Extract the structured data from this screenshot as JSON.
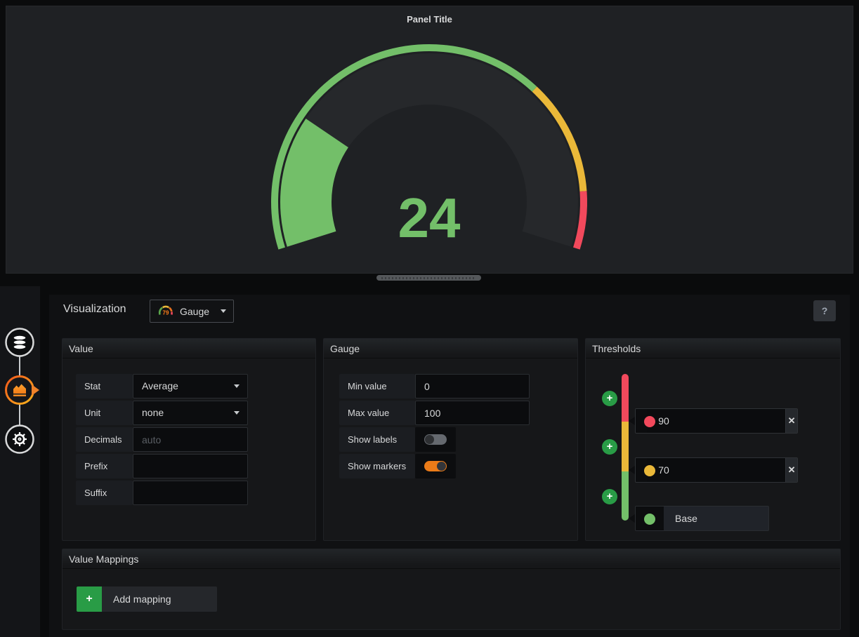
{
  "panel": {
    "title": "Panel Title"
  },
  "chart_data": {
    "type": "gauge",
    "title": "Panel Title",
    "value": 24,
    "min": 0,
    "max": 100,
    "unit": "none",
    "stat": "Average",
    "arc_span_degrees": 215,
    "value_color": "#73BF69",
    "ring_background": "#26282b",
    "thresholds": [
      {
        "label": "Base",
        "value": 0,
        "color": "#73BF69"
      },
      {
        "value": 70,
        "color": "#EAB839"
      },
      {
        "value": 90,
        "color": "#F2495C"
      }
    ]
  },
  "sidebar": {
    "tabs": [
      {
        "name": "queries",
        "icon": "database-icon",
        "active": false
      },
      {
        "name": "visualization",
        "icon": "area-chart-icon",
        "active": true
      },
      {
        "name": "general",
        "icon": "gear-icon",
        "active": false
      }
    ]
  },
  "editor": {
    "heading": "Visualization",
    "viz_type": "Gauge",
    "viz_icon_value": "79",
    "help_label": "?",
    "sections": {
      "value": {
        "title": "Value",
        "rows": [
          {
            "label": "Stat",
            "control": "select",
            "value": "Average"
          },
          {
            "label": "Unit",
            "control": "select",
            "value": "none"
          },
          {
            "label": "Decimals",
            "control": "input",
            "value": "",
            "placeholder": "auto"
          },
          {
            "label": "Prefix",
            "control": "input",
            "value": ""
          },
          {
            "label": "Suffix",
            "control": "input",
            "value": ""
          }
        ]
      },
      "gauge": {
        "title": "Gauge",
        "rows": [
          {
            "label": "Min value",
            "control": "input",
            "value": "0"
          },
          {
            "label": "Max value",
            "control": "input",
            "value": "100"
          },
          {
            "label": "Show labels",
            "control": "toggle",
            "on": false
          },
          {
            "label": "Show markers",
            "control": "toggle",
            "on": true
          }
        ]
      },
      "thresholds": {
        "title": "Thresholds",
        "entries": [
          {
            "value": "90",
            "color": "#F2495C",
            "removable": true
          },
          {
            "value": "70",
            "color": "#EAB839",
            "removable": true
          },
          {
            "label": "Base",
            "color": "#73BF69",
            "removable": false
          }
        ]
      },
      "mappings": {
        "title": "Value Mappings",
        "add_label": "Add mapping"
      }
    }
  },
  "colors": {
    "green": "#73BF69",
    "yellow": "#EAB839",
    "red": "#F2495C",
    "toggle_on_orange": "#EB7B18",
    "button_green": "#299C46",
    "active_tab_orange": "#F08229"
  }
}
